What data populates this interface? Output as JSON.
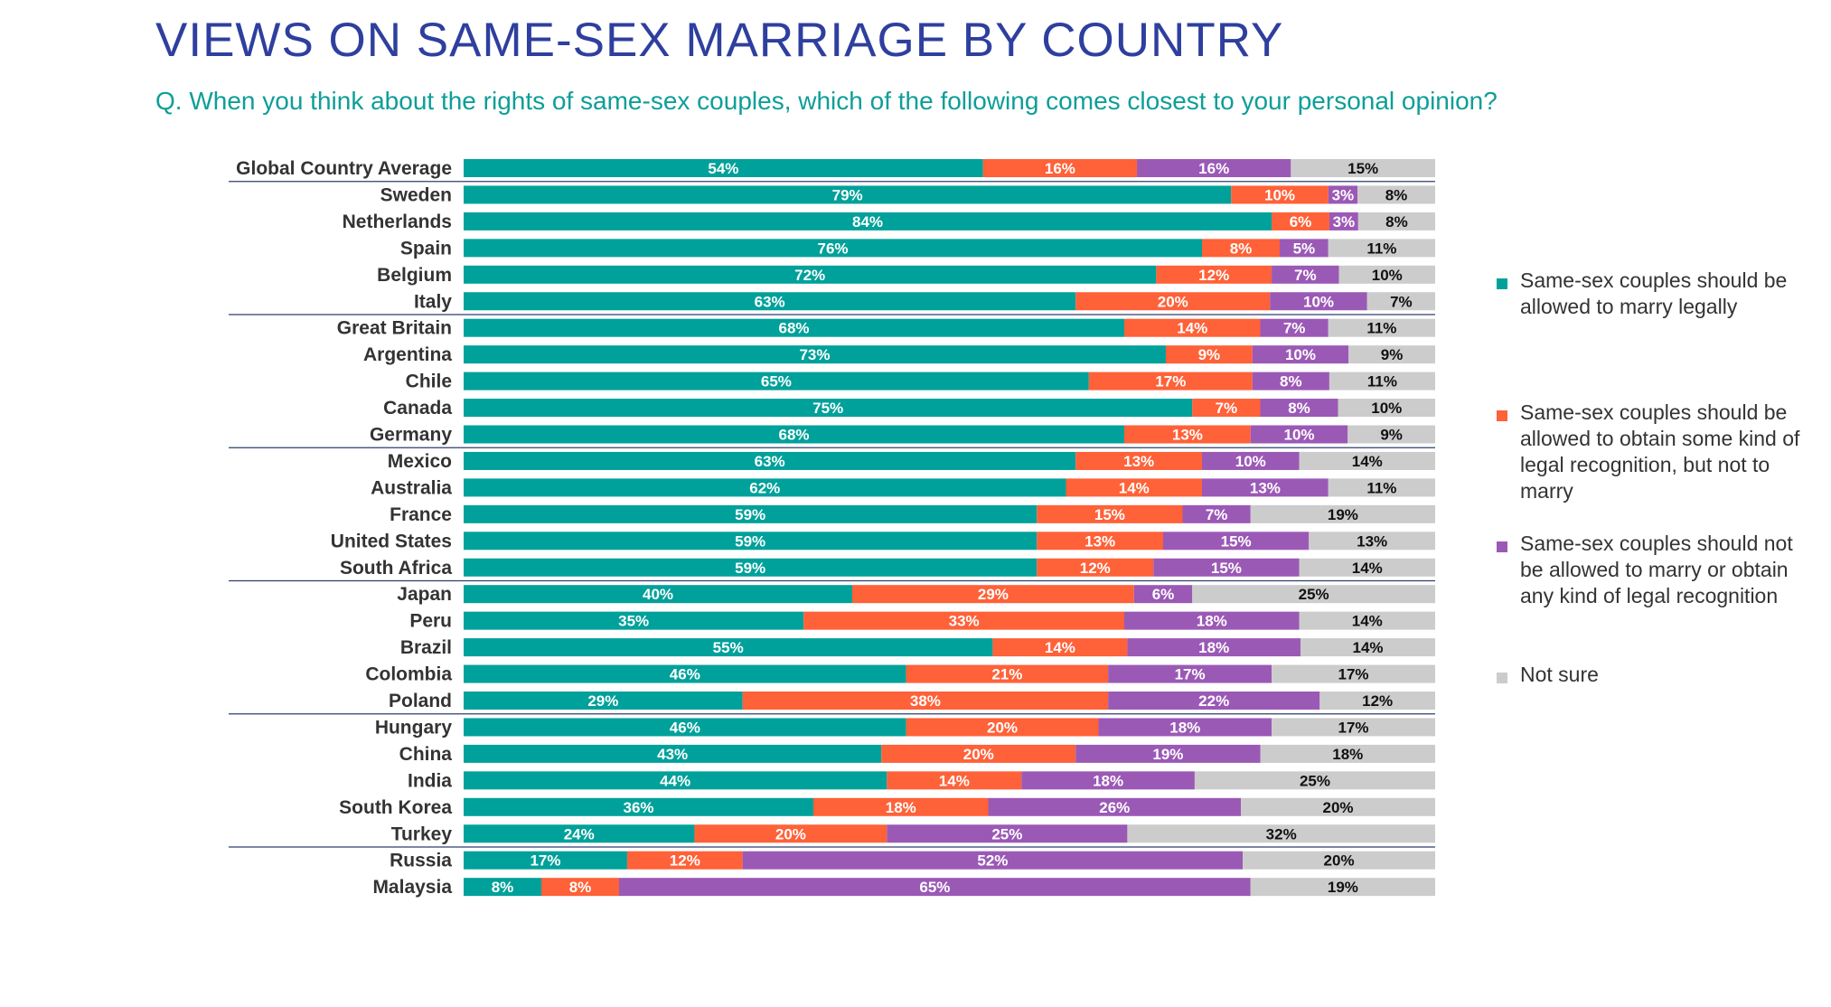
{
  "title": "VIEWS ON SAME-SEX MARRIAGE BY COUNTRY",
  "subtitle": "Q. When you think about the rights of same-sex couples, which of the following comes closest to your personal opinion?",
  "colors": {
    "marry": "#00A19A",
    "recognition": "#FF6138",
    "not_allowed": "#9B59B6",
    "not_sure": "#CCCCCC"
  },
  "legend": [
    {
      "label": "Same-sex couples should be allowed to marry legally",
      "color": "#00A19A"
    },
    {
      "label": "Same-sex couples should be allowed to obtain some kind of legal recognition, but not to marry",
      "color": "#FF6138"
    },
    {
      "label": "Same-sex couples should not be allowed to marry or obtain any kind of legal recognition",
      "color": "#9B59B6"
    },
    {
      "label": "Not sure",
      "color": "#CCCCCC"
    }
  ],
  "chart_data": {
    "type": "bar",
    "orientation": "horizontal",
    "stacked": "100%",
    "categories": [
      "Global Country Average",
      "Sweden",
      "Netherlands",
      "Spain",
      "Belgium",
      "Italy",
      "Great Britain",
      "Argentina",
      "Chile",
      "Canada",
      "Germany",
      "Mexico",
      "Australia",
      "France",
      "United States",
      "South Africa",
      "Japan",
      "Peru",
      "Brazil",
      "Colombia",
      "Poland",
      "Hungary",
      "China",
      "India",
      "South Korea",
      "Turkey",
      "Russia",
      "Malaysia"
    ],
    "group_separators_after": [
      "Global Country Average",
      "Italy",
      "Germany",
      "South Africa",
      "Poland",
      "Turkey"
    ],
    "series": [
      {
        "name": "Same-sex couples should be allowed to marry legally",
        "color": "#00A19A",
        "label_color": "#ffffff",
        "values": [
          54,
          79,
          84,
          76,
          72,
          63,
          68,
          73,
          65,
          75,
          68,
          63,
          62,
          59,
          59,
          59,
          40,
          35,
          55,
          46,
          29,
          46,
          43,
          44,
          36,
          24,
          17,
          8
        ]
      },
      {
        "name": "Same-sex couples should be allowed to obtain some kind of legal recognition, but not to marry",
        "color": "#FF6138",
        "label_color": "#ffffff",
        "values": [
          16,
          10,
          6,
          8,
          12,
          20,
          14,
          9,
          17,
          7,
          13,
          13,
          14,
          15,
          13,
          12,
          29,
          33,
          14,
          21,
          38,
          20,
          20,
          14,
          18,
          20,
          12,
          8
        ]
      },
      {
        "name": "Same-sex couples should not be allowed to marry or obtain any kind of legal recognition",
        "color": "#9B59B6",
        "label_color": "#ffffff",
        "values": [
          16,
          3,
          3,
          5,
          7,
          10,
          7,
          10,
          8,
          8,
          10,
          10,
          13,
          7,
          15,
          15,
          6,
          18,
          18,
          17,
          22,
          18,
          19,
          18,
          26,
          25,
          52,
          65
        ]
      },
      {
        "name": "Not sure",
        "color": "#CCCCCC",
        "label_color": "#111111",
        "values": [
          15,
          8,
          8,
          11,
          10,
          7,
          11,
          9,
          11,
          10,
          9,
          14,
          11,
          19,
          13,
          14,
          25,
          14,
          14,
          17,
          12,
          17,
          18,
          25,
          20,
          32,
          20,
          19
        ]
      }
    ],
    "value_suffix": "%",
    "legend_position": "right",
    "grid": false
  }
}
